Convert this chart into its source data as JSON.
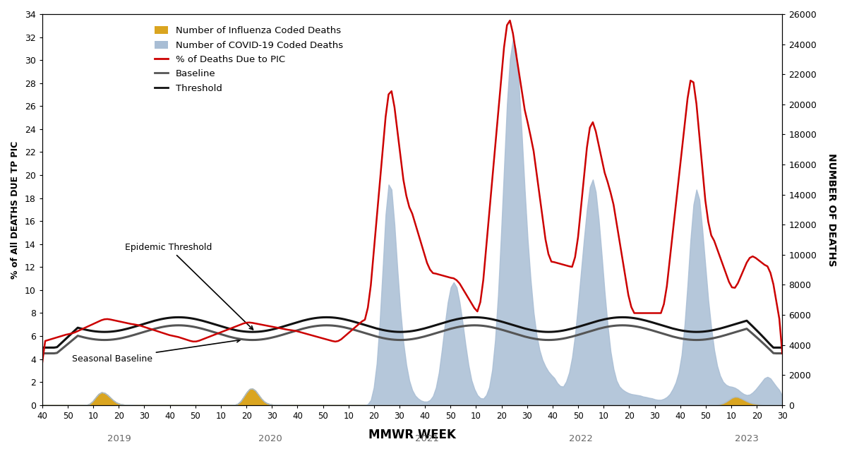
{
  "xlabel": "MMWR WEEK",
  "ylabel_left": "% of All DEATHS DUE TP PIC",
  "ylabel_right": "NUMBER OF DEATHS",
  "ylim_left": [
    0,
    34
  ],
  "ylim_right": [
    0,
    26000
  ],
  "yticks_left": [
    0,
    2,
    4,
    6,
    8,
    10,
    12,
    14,
    16,
    18,
    20,
    22,
    24,
    26,
    28,
    30,
    32,
    34
  ],
  "yticks_right": [
    0,
    2000,
    4000,
    6000,
    8000,
    10000,
    12000,
    14000,
    16000,
    18000,
    20000,
    22000,
    24000,
    26000
  ],
  "xtick_labels": [
    "40",
    "50",
    "10",
    "20",
    "30",
    "40",
    "50",
    "10",
    "20",
    "30",
    "40",
    "50",
    "10",
    "20",
    "30",
    "40",
    "50",
    "10",
    "20",
    "30",
    "40",
    "50",
    "10",
    "20",
    "30",
    "40",
    "50",
    "10",
    "20",
    "30"
  ],
  "year_labels": [
    "2019",
    "2020",
    "2021",
    "2022",
    "2023"
  ],
  "influenza_color": "#DAA520",
  "covid_color": "#a8bdd4",
  "pic_color": "#cc0000",
  "baseline_color": "#555555",
  "threshold_color": "#111111",
  "legend_items": [
    "Number of Influenza Coded Deaths",
    "Number of COVID-19 Coded Deaths",
    "% of Deaths Due to PIC",
    "Baseline",
    "Threshold"
  ],
  "annotation_epidemic": "Epidemic Threshold",
  "annotation_baseline": "Seasonal Baseline"
}
